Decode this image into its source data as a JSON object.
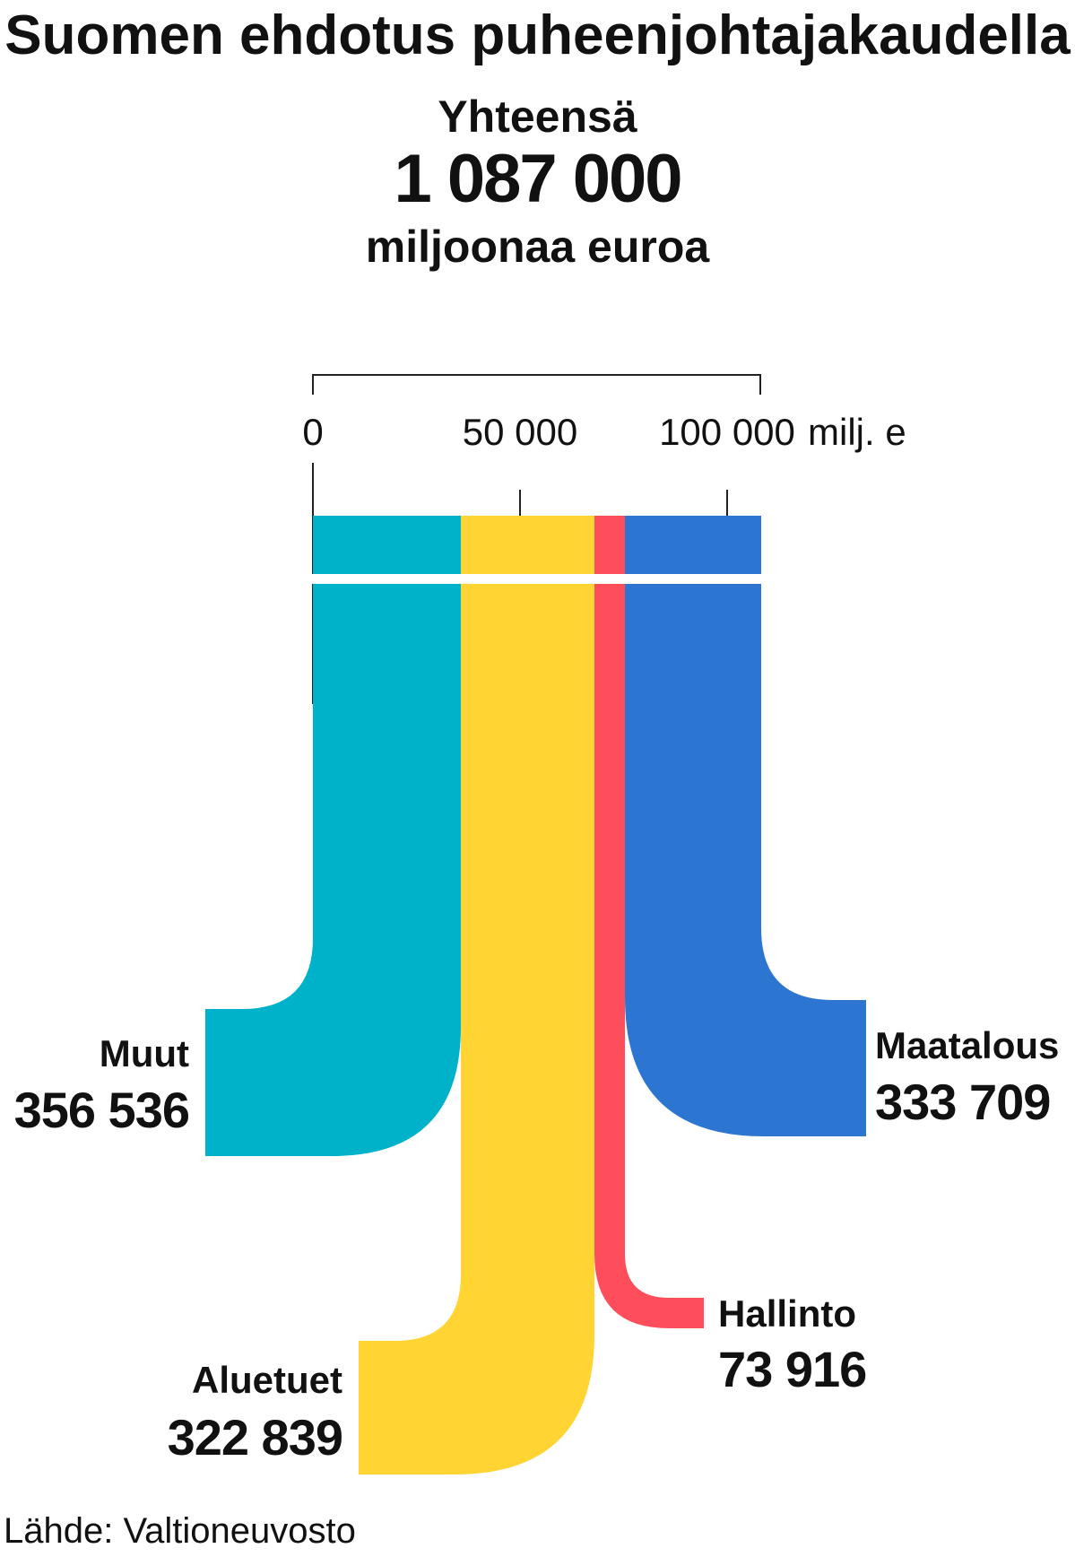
{
  "title": "Suomen ehdotus puheenjohtajakaudella",
  "total": {
    "label": "Yhteensä",
    "value": "1 087 000",
    "unit": "miljoonaa euroa"
  },
  "axis": {
    "ticks": [
      "0",
      "50 000",
      "100 000"
    ],
    "unit": "milj. e"
  },
  "source": "Lähde: Valtioneuvosto",
  "chart_data": {
    "type": "bar",
    "title": "Suomen ehdotus puheenjohtajakaudella",
    "xlim": [
      0,
      108700
    ],
    "x_ticks": [
      0,
      50000,
      100000
    ],
    "x_unit": "milj. e",
    "total": 1087000,
    "categories": [
      "Muut",
      "Aluetuet",
      "Hallinto",
      "Maatalous"
    ],
    "values": [
      356536,
      322839,
      73916,
      333709
    ],
    "value_labels": [
      "356 536",
      "322 839",
      "73 916",
      "333 709"
    ],
    "colors": [
      "#00b2c9",
      "#ffd433",
      "#ff4e5b",
      "#2c76d1"
    ]
  }
}
